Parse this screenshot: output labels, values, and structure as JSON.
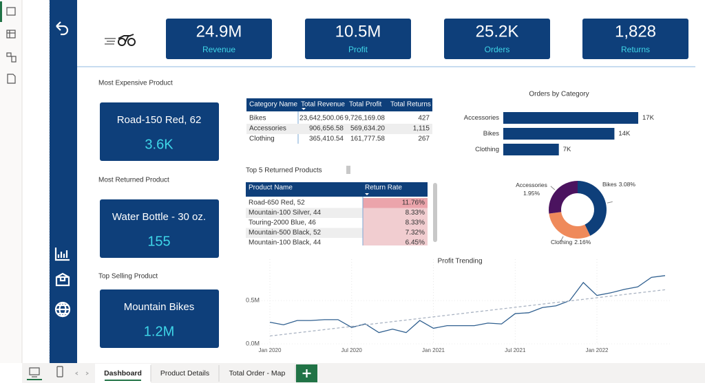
{
  "kpis": [
    {
      "value": "24.9M",
      "label": "Revenue"
    },
    {
      "value": "10.5M",
      "label": "Profit"
    },
    {
      "value": "25.2K",
      "label": "Orders"
    },
    {
      "value": "1,828",
      "label": "Returns"
    }
  ],
  "cards": [
    {
      "title": "Most Expensive Product",
      "name": "Road-150 Red, 62",
      "value": "3.6K"
    },
    {
      "title": "Most Returned Product",
      "name": "Water Bottle - 30 oz.",
      "value": "155"
    },
    {
      "title": "Top Selling Product",
      "name": "Mountain Bikes",
      "value": "1.2M"
    }
  ],
  "category_table": {
    "headers": [
      "Category Name",
      "Total Revenue",
      "Total Profit",
      "Total Returns"
    ],
    "rows": [
      [
        "Bikes",
        "23,642,500.06",
        "9,726,169.08",
        "427"
      ],
      [
        "Accessories",
        "906,656.58",
        "569,634.20",
        "1,115"
      ],
      [
        "Clothing",
        "365,410.54",
        "161,777.58",
        "267"
      ]
    ]
  },
  "returns_table": {
    "title": "Top 5 Returned Products",
    "headers": [
      "Product Name",
      "Return Rate"
    ],
    "rows": [
      [
        "Road-650 Red, 52",
        "11.76%"
      ],
      [
        "Mountain-100 Silver, 44",
        "8.33%"
      ],
      [
        "Touring-2000 Blue, 46",
        "8.33%"
      ],
      [
        "Mountain-500 Black, 52",
        "7.32%"
      ],
      [
        "Mountain-100 Black, 44",
        "6.45%"
      ]
    ]
  },
  "chart_data": [
    {
      "type": "bar",
      "title": "Orders by Category",
      "orientation": "horizontal",
      "categories": [
        "Accessories",
        "Bikes",
        "Clothing"
      ],
      "values": [
        17000,
        14000,
        7000
      ],
      "value_labels": [
        "17K",
        "14K",
        "7K"
      ],
      "color": "#0e3f7a"
    },
    {
      "type": "pie",
      "donut": true,
      "categories": [
        "Bikes",
        "Clothing",
        "Accessories"
      ],
      "values": [
        3.08,
        2.16,
        1.95
      ],
      "value_labels": [
        "3.08%",
        "2.16%",
        "1.95%"
      ],
      "colors": [
        "#0e3f7a",
        "#ef8a5b",
        "#4b135f"
      ]
    },
    {
      "type": "line",
      "title": "Profit Trending",
      "x": [
        "2020-01",
        "2020-02",
        "2020-03",
        "2020-04",
        "2020-05",
        "2020-06",
        "2020-07",
        "2020-08",
        "2020-09",
        "2020-10",
        "2020-11",
        "2020-12",
        "2021-01",
        "2021-02",
        "2021-03",
        "2021-04",
        "2021-05",
        "2021-06",
        "2021-07",
        "2021-08",
        "2021-09",
        "2021-10",
        "2021-11",
        "2021-12",
        "2022-01",
        "2022-02",
        "2022-03",
        "2022-04",
        "2022-05",
        "2022-06"
      ],
      "series": [
        {
          "name": "Profit",
          "color": "#2f5f8f",
          "values": [
            0.25,
            0.22,
            0.27,
            0.27,
            0.28,
            0.28,
            0.19,
            0.23,
            0.13,
            0.17,
            0.13,
            0.27,
            0.18,
            0.21,
            0.21,
            0.21,
            0.24,
            0.23,
            0.35,
            0.36,
            0.42,
            0.44,
            0.5,
            0.71,
            0.56,
            0.59,
            0.63,
            0.66,
            0.77,
            0.79
          ]
        }
      ],
      "trend_line": true,
      "xlim": [
        "2020-01",
        "2022-06"
      ],
      "xticks": [
        {
          "value": "2020-01",
          "label": "Jan 2020"
        },
        {
          "value": "2020-07",
          "label": "Jul 2020"
        },
        {
          "value": "2021-01",
          "label": "Jan 2021"
        },
        {
          "value": "2021-07",
          "label": "Jul 2021"
        },
        {
          "value": "2022-01",
          "label": "Jan 2022"
        }
      ],
      "ylim": [
        0,
        0.9
      ],
      "yticks": [
        {
          "value": 0,
          "label": "0.0M"
        },
        {
          "value": 0.5,
          "label": "0.5M"
        }
      ],
      "grid": true
    }
  ],
  "tabs": [
    "Dashboard",
    "Product Details",
    "Total Order - Map"
  ]
}
